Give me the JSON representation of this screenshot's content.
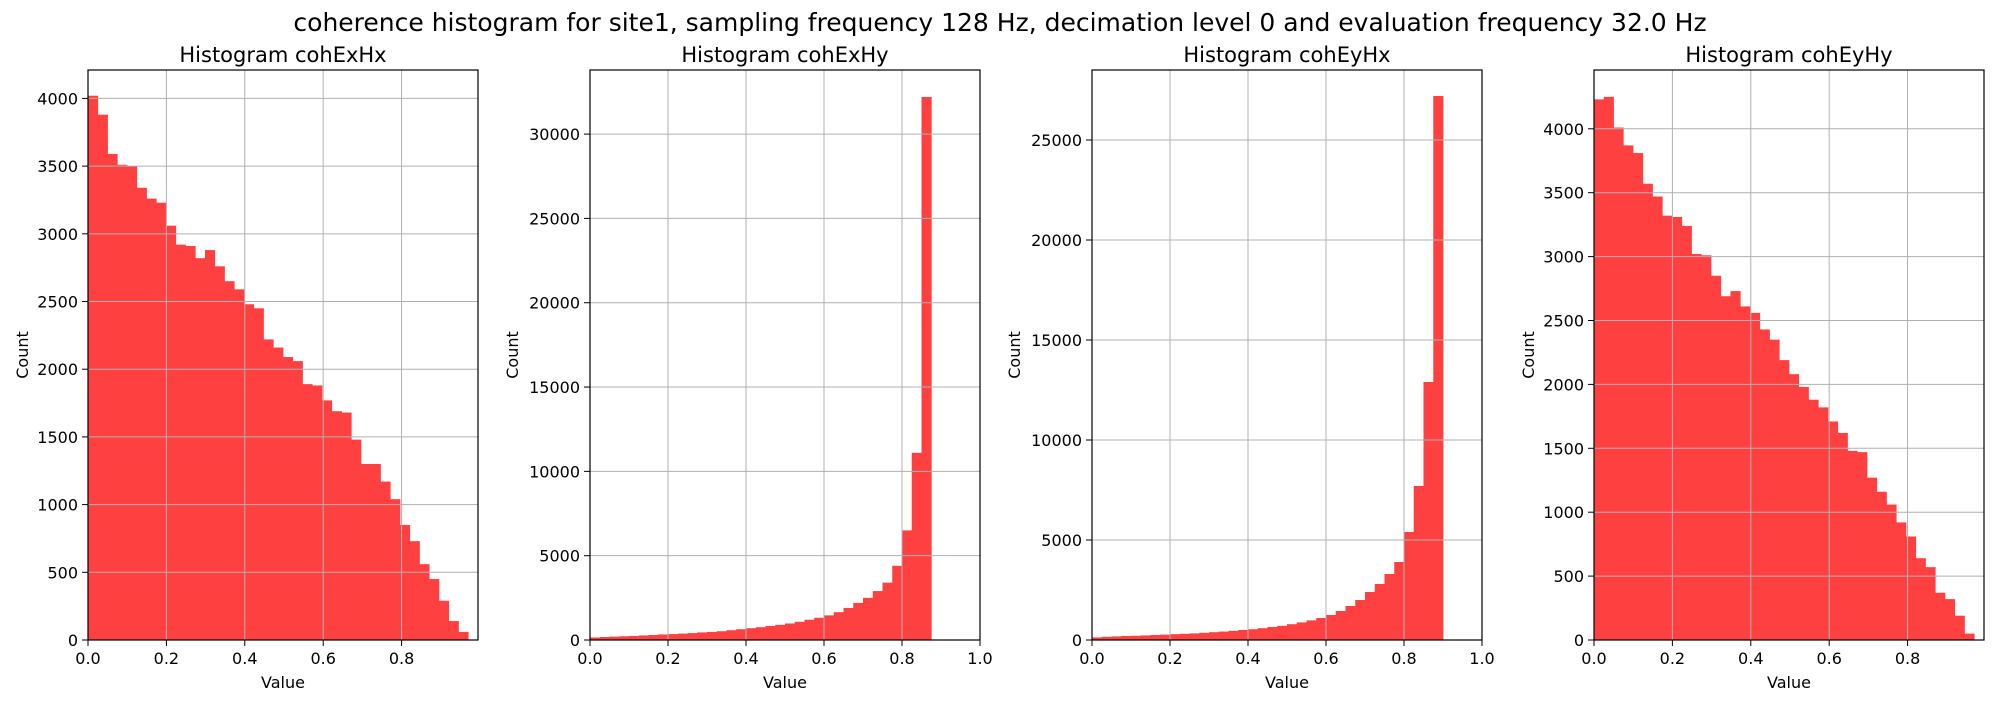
{
  "suptitle": "coherence histogram for site1, sampling frequency 128 Hz, decimation level 0 and evaluation frequency 32.0 Hz",
  "colors": {
    "bar": "#ff4040",
    "grid": "#b0b0b0",
    "axes": "#000000"
  },
  "chart_data": [
    {
      "type": "bar",
      "title": "Histogram cohExHx",
      "xlabel": "Value",
      "ylabel": "Count",
      "xlim": [
        0,
        0.995
      ],
      "ylim": [
        0,
        4210
      ],
      "xticks": [
        0.0,
        0.2,
        0.4,
        0.6,
        0.8
      ],
      "xtick_labels": [
        "0.0",
        "0.2",
        "0.4",
        "0.6",
        "0.8"
      ],
      "yticks": [
        0,
        500,
        1000,
        1500,
        2000,
        2500,
        3000,
        3500,
        4000
      ],
      "yticks_labels": [
        "0",
        "500",
        "1000",
        "1500",
        "2000",
        "2500",
        "3000",
        "3500",
        "4000"
      ],
      "grid": true,
      "bin_start": 0.0,
      "bin_width": 0.02487,
      "values": [
        4020,
        3880,
        3590,
        3510,
        3500,
        3340,
        3260,
        3230,
        3060,
        2920,
        2910,
        2820,
        2880,
        2760,
        2650,
        2590,
        2480,
        2450,
        2220,
        2160,
        2090,
        2060,
        1890,
        1880,
        1770,
        1690,
        1680,
        1480,
        1300,
        1300,
        1170,
        1040,
        850,
        730,
        560,
        450,
        290,
        140,
        60
      ]
    },
    {
      "type": "bar",
      "title": "Histogram cohExHy",
      "xlabel": "Value",
      "ylabel": "Count",
      "xlim": [
        0,
        1.0
      ],
      "ylim": [
        0,
        33800
      ],
      "xticks": [
        0.0,
        0.2,
        0.4,
        0.6,
        0.8,
        1.0
      ],
      "xtick_labels": [
        "0.0",
        "0.2",
        "0.4",
        "0.6",
        "0.8",
        "1.0"
      ],
      "yticks": [
        0,
        5000,
        10000,
        15000,
        20000,
        25000,
        30000
      ],
      "yticks_labels": [
        "0",
        "5000",
        "10000",
        "15000",
        "20000",
        "25000",
        "30000"
      ],
      "grid": true,
      "bin_start": 0.0,
      "bin_width": 0.025,
      "values": [
        150,
        180,
        200,
        220,
        240,
        270,
        300,
        330,
        350,
        380,
        410,
        450,
        480,
        520,
        580,
        640,
        700,
        760,
        830,
        900,
        980,
        1080,
        1200,
        1320,
        1460,
        1650,
        1900,
        2200,
        2500,
        2900,
        3400,
        4400,
        6500,
        11100,
        32200
      ]
    },
    {
      "type": "bar",
      "title": "Histogram cohEyHx",
      "xlabel": "Value",
      "ylabel": "Count",
      "xlim": [
        0,
        1.0
      ],
      "ylim": [
        0,
        28500
      ],
      "xticks": [
        0.0,
        0.2,
        0.4,
        0.6,
        0.8,
        1.0
      ],
      "xtick_labels": [
        "0.0",
        "0.2",
        "0.4",
        "0.6",
        "0.8",
        "1.0"
      ],
      "yticks": [
        0,
        5000,
        10000,
        15000,
        20000,
        25000
      ],
      "yticks_labels": [
        "0",
        "5000",
        "10000",
        "15000",
        "20000",
        "25000"
      ],
      "grid": true,
      "bin_start": 0.0,
      "bin_width": 0.025,
      "values": [
        130,
        160,
        180,
        200,
        210,
        230,
        250,
        270,
        290,
        310,
        330,
        360,
        390,
        420,
        460,
        500,
        540,
        590,
        650,
        710,
        790,
        880,
        980,
        1100,
        1250,
        1450,
        1700,
        2000,
        2400,
        2800,
        3300,
        3900,
        5400,
        7700,
        12900,
        27200
      ]
    },
    {
      "type": "bar",
      "title": "Histogram cohEyHy",
      "xlabel": "Value",
      "ylabel": "Count",
      "xlim": [
        0,
        0.995
      ],
      "ylim": [
        0,
        4460
      ],
      "xticks": [
        0.0,
        0.2,
        0.4,
        0.6,
        0.8
      ],
      "xtick_labels": [
        "0.0",
        "0.2",
        "0.4",
        "0.6",
        "0.8"
      ],
      "yticks": [
        0,
        500,
        1000,
        1500,
        2000,
        2500,
        3000,
        3500,
        4000
      ],
      "yticks_labels": [
        "0",
        "500",
        "1000",
        "1500",
        "2000",
        "2500",
        "3000",
        "3500",
        "4000"
      ],
      "grid": true,
      "bin_start": 0.0,
      "bin_width": 0.02487,
      "values": [
        4230,
        4250,
        4010,
        3870,
        3810,
        3570,
        3470,
        3320,
        3310,
        3240,
        3020,
        3010,
        2850,
        2690,
        2730,
        2610,
        2560,
        2430,
        2350,
        2190,
        2080,
        1980,
        1880,
        1820,
        1710,
        1620,
        1480,
        1470,
        1270,
        1160,
        1060,
        920,
        810,
        640,
        570,
        370,
        320,
        190,
        50
      ]
    }
  ]
}
